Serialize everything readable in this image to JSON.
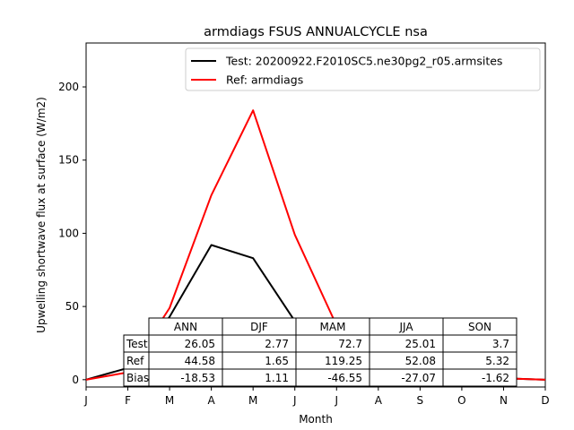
{
  "chart_data": {
    "type": "line",
    "title": "armdiags FSUS ANNUALCYCLE nsa",
    "xlabel": "Month",
    "ylabel": "Upwelling shortwave flux at surface (W/m2)",
    "categories": [
      "J",
      "F",
      "M",
      "A",
      "M",
      "J",
      "J",
      "A",
      "S",
      "O",
      "N",
      "D"
    ],
    "x": [
      1,
      2,
      3,
      4,
      5,
      6,
      7,
      8,
      9,
      10,
      11,
      12
    ],
    "xlim": [
      1,
      12
    ],
    "ylim": [
      -5,
      230
    ],
    "yticks": [
      0,
      50,
      100,
      150,
      200
    ],
    "series": [
      {
        "name": "Test: 20200922.F2010SC5.ne30pg2_r05.armsites",
        "color": "#000000",
        "values": [
          0,
          8,
          43,
          92,
          83,
          40,
          21,
          14,
          6,
          4,
          1,
          0
        ]
      },
      {
        "name": "Ref: armdiags",
        "color": "#ff0000",
        "values": [
          0,
          5,
          49,
          126,
          184,
          99,
          37,
          18,
          10,
          7,
          1,
          0
        ]
      }
    ],
    "legend": "top-right",
    "table": {
      "columns": [
        "ANN",
        "DJF",
        "MAM",
        "JJA",
        "SON"
      ],
      "rows": [
        {
          "label": "Test",
          "values": [
            "26.05",
            "2.77",
            "72.7",
            "25.01",
            "3.7"
          ]
        },
        {
          "label": "Ref",
          "values": [
            "44.58",
            "1.65",
            "119.25",
            "52.08",
            "5.32"
          ]
        },
        {
          "label": "Bias",
          "values": [
            "-18.53",
            "1.11",
            "-46.55",
            "-27.07",
            "-1.62"
          ]
        }
      ]
    }
  }
}
